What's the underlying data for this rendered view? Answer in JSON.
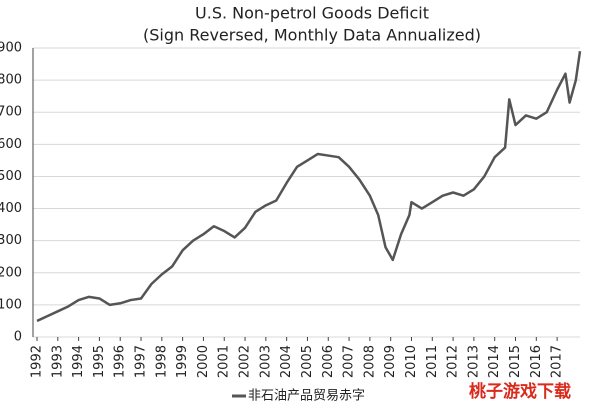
{
  "chart_data": {
    "type": "line",
    "title": "U.S. Non-petrol Goods Deficit",
    "subtitle": "(Sign Reversed, Monthly Data Annualized)",
    "x": [
      1992.0,
      1992.5,
      1993.0,
      1993.5,
      1994.0,
      1994.5,
      1995.0,
      1995.5,
      1996.0,
      1996.5,
      1997.0,
      1997.5,
      1998.0,
      1998.5,
      1999.0,
      1999.5,
      2000.0,
      2000.5,
      2001.0,
      2001.5,
      2002.0,
      2002.5,
      2003.0,
      2003.5,
      2004.0,
      2004.5,
      2005.0,
      2005.5,
      2006.0,
      2006.5,
      2007.0,
      2007.5,
      2008.0,
      2008.4,
      2008.75,
      2009.1,
      2009.5,
      2009.9,
      2010.0,
      2010.5,
      2011.0,
      2011.5,
      2012.0,
      2012.5,
      2013.0,
      2013.5,
      2014.0,
      2014.5,
      2014.7,
      2015.0,
      2015.5,
      2016.0,
      2016.5,
      2017.0,
      2017.4,
      2017.6,
      2017.9,
      2018.1
    ],
    "series": [
      {
        "name": "非石油产品贸易赤字",
        "color": "#555555",
        "values": [
          50,
          65,
          80,
          95,
          115,
          125,
          120,
          100,
          105,
          115,
          120,
          165,
          195,
          220,
          270,
          300,
          320,
          345,
          330,
          310,
          340,
          390,
          410,
          425,
          480,
          530,
          550,
          570,
          565,
          560,
          530,
          490,
          440,
          380,
          280,
          240,
          320,
          380,
          420,
          400,
          420,
          440,
          450,
          440,
          460,
          500,
          560,
          590,
          740,
          660,
          690,
          680,
          700,
          770,
          820,
          730,
          800,
          890
        ]
      }
    ],
    "xlim": [
      1992,
      2018.1
    ],
    "xticks": [
      1992,
      1993,
      1994,
      1995,
      1996,
      1997,
      1998,
      1999,
      2000,
      2001,
      2002,
      2003,
      2004,
      2005,
      2006,
      2007,
      2008,
      2009,
      2010,
      2011,
      2012,
      2013,
      2014,
      2015,
      2016,
      2017
    ],
    "ylim": [
      0,
      900
    ],
    "yticks": [
      0,
      100,
      200,
      300,
      400,
      500,
      600,
      700,
      800,
      900
    ],
    "grid": true,
    "watermark": "桃子游戏下载"
  }
}
